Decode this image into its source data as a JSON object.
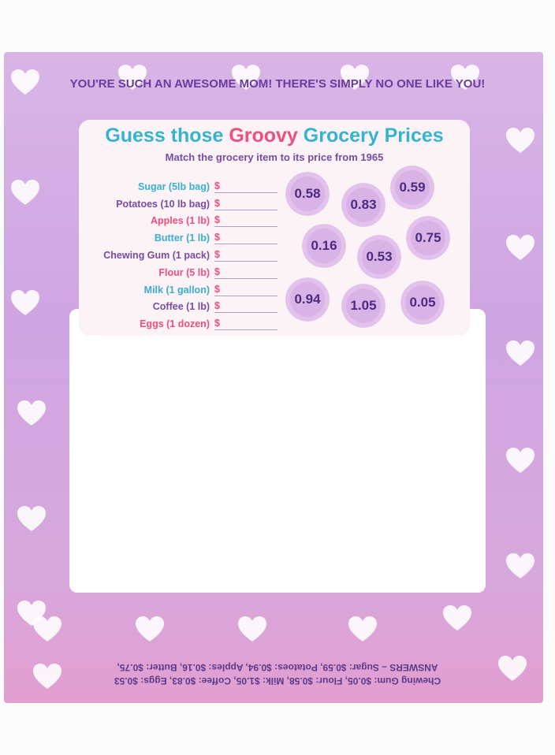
{
  "tagline": "YOU'RE SUCH AN AWESOME MOM! THERE'S SIMPLY NO ONE LIKE YOU!",
  "card": {
    "title_a": "Guess those ",
    "title_b": "Groovy",
    "title_c": " Grocery Prices",
    "subtitle": "Match the grocery item to its price from 1965",
    "items": [
      {
        "label": "Sugar (5lb bag)",
        "blank": "$"
      },
      {
        "label": "Potatoes (10 lb bag)",
        "blank": "$"
      },
      {
        "label": "Apples (1 lb)",
        "blank": "$"
      },
      {
        "label": "Butter (1 lb)",
        "blank": "$"
      },
      {
        "label": "Chewing Gum (1 pack)",
        "blank": "$"
      },
      {
        "label": "Flour (5 lb)",
        "blank": "$"
      },
      {
        "label": "Milk (1 gallon)",
        "blank": "$"
      },
      {
        "label": "Coffee (1 lb)",
        "blank": "$"
      },
      {
        "label": "Eggs (1 dozen)",
        "blank": "$"
      }
    ],
    "prices": [
      "0.58",
      "0.83",
      "0.59",
      "0.16",
      "0.53",
      "0.75",
      "0.94",
      "1.05",
      "0.05"
    ]
  },
  "answers": {
    "line1": "ANSWERS – Sugar: $0.59, Potatoes: $0.94, Apples: $0.16, Butter: $0.75,",
    "line2": "Chewing Gum: $0.05, Flour: $0.58, Milk: $1.05, Coffee: $0.83, Eggs: $0.53"
  }
}
